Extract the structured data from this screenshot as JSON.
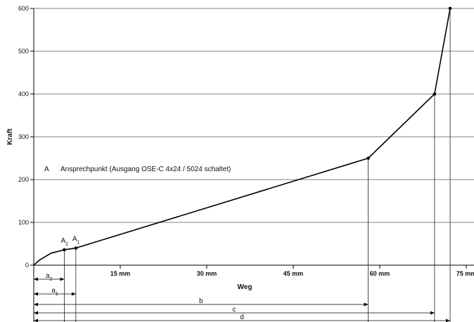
{
  "chart_data": {
    "type": "line",
    "title": "",
    "xlabel": "Weg",
    "ylabel": "Kraft",
    "xlim": [
      0,
      75
    ],
    "ylim": [
      0,
      600
    ],
    "grid": true,
    "y_ticks": [
      "0",
      "100",
      "200",
      "300",
      "400",
      "500",
      "600"
    ],
    "x_ticks": [
      {
        "value": 15,
        "label": "15 mm"
      },
      {
        "value": 30,
        "label": "30 mm"
      },
      {
        "value": 45,
        "label": "45 mm"
      },
      {
        "value": 60,
        "label": "60 mm"
      },
      {
        "value": 75,
        "label": "75 mm"
      }
    ],
    "series": [
      {
        "x": [
          0,
          1,
          3,
          5.3,
          7.3,
          58,
          69.5,
          72.2
        ],
        "y": [
          0,
          12,
          28,
          36,
          40,
          250,
          400,
          600
        ]
      }
    ],
    "points": [
      {
        "label": "A2",
        "x": 5.3,
        "y": 36
      },
      {
        "label": "A1",
        "x": 7.3,
        "y": 40
      },
      {
        "x": 58,
        "y": 250
      },
      {
        "x": 69.5,
        "y": 400
      },
      {
        "x": 72.2,
        "y": 600
      }
    ],
    "annotation": {
      "key": "A",
      "text": "Ansprechpunkt (Ausgang OSE-C 4x24 / 5024 schaltet)"
    },
    "dimensions": [
      {
        "label": "a2",
        "to": 5.3
      },
      {
        "label": "a1",
        "to": 7.3
      },
      {
        "label": "b",
        "to": 58
      },
      {
        "label": "c",
        "to": 69.5
      },
      {
        "label": "d",
        "to": 72.2
      }
    ]
  }
}
